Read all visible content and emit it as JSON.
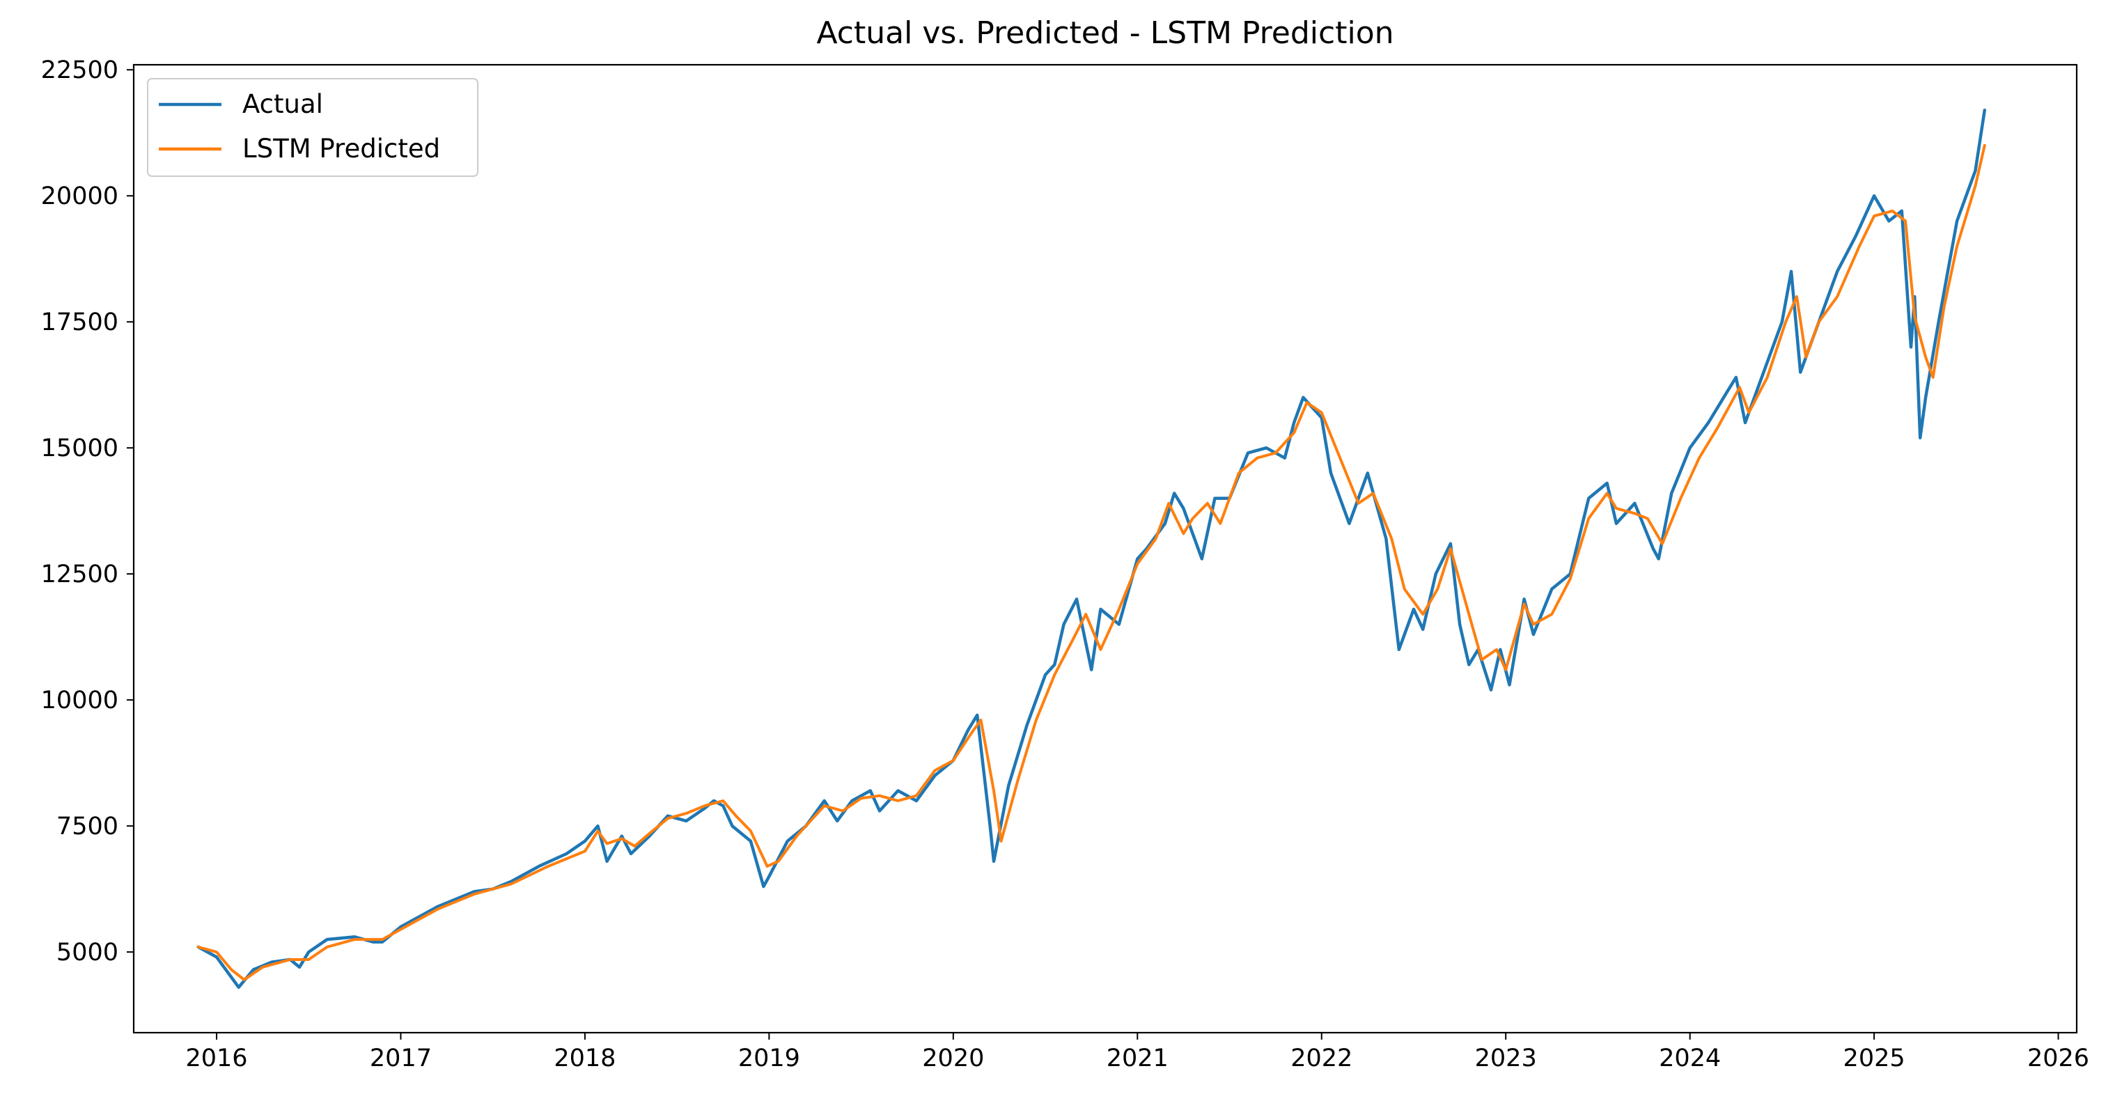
{
  "chart_data": {
    "type": "line",
    "title": "Actual vs. Predicted - LSTM Prediction",
    "xlabel": "",
    "ylabel": "",
    "xlim": [
      2015.55,
      2026.1
    ],
    "ylim": [
      3400,
      22600
    ],
    "x_ticks": [
      "2016",
      "2017",
      "2018",
      "2019",
      "2020",
      "2021",
      "2022",
      "2023",
      "2024",
      "2025",
      "2026"
    ],
    "y_ticks": [
      "5000",
      "7500",
      "10000",
      "12500",
      "15000",
      "17500",
      "20000",
      "22500"
    ],
    "legend_position": "top-left",
    "grid": false,
    "series": [
      {
        "name": "Actual",
        "color": "#1f77b4",
        "x": [
          2015.9,
          2016.0,
          2016.08,
          2016.12,
          2016.2,
          2016.3,
          2016.4,
          2016.45,
          2016.5,
          2016.6,
          2016.75,
          2016.85,
          2016.9,
          2017.0,
          2017.2,
          2017.4,
          2017.5,
          2017.6,
          2017.75,
          2017.9,
          2018.0,
          2018.07,
          2018.12,
          2018.2,
          2018.25,
          2018.35,
          2018.45,
          2018.55,
          2018.65,
          2018.7,
          2018.75,
          2018.8,
          2018.9,
          2018.97,
          2019.0,
          2019.1,
          2019.2,
          2019.3,
          2019.37,
          2019.45,
          2019.55,
          2019.6,
          2019.7,
          2019.8,
          2019.9,
          2020.0,
          2020.08,
          2020.13,
          2020.2,
          2020.22,
          2020.3,
          2020.4,
          2020.5,
          2020.55,
          2020.6,
          2020.67,
          2020.75,
          2020.8,
          2020.9,
          2021.0,
          2021.05,
          2021.15,
          2021.2,
          2021.25,
          2021.35,
          2021.42,
          2021.5,
          2021.6,
          2021.7,
          2021.8,
          2021.85,
          2021.9,
          2022.0,
          2022.05,
          2022.15,
          2022.25,
          2022.35,
          2022.42,
          2022.5,
          2022.55,
          2022.62,
          2022.7,
          2022.75,
          2022.8,
          2022.85,
          2022.92,
          2022.97,
          2023.02,
          2023.1,
          2023.15,
          2023.25,
          2023.35,
          2023.45,
          2023.55,
          2023.6,
          2023.7,
          2023.8,
          2023.83,
          2023.9,
          2024.0,
          2024.1,
          2024.2,
          2024.25,
          2024.3,
          2024.4,
          2024.5,
          2024.55,
          2024.6,
          2024.65,
          2024.7,
          2024.8,
          2024.9,
          2025.0,
          2025.08,
          2025.15,
          2025.2,
          2025.22,
          2025.25,
          2025.28,
          2025.35,
          2025.45,
          2025.55,
          2025.6
        ],
        "y": [
          5100,
          4900,
          4500,
          4300,
          4650,
          4800,
          4850,
          4700,
          5000,
          5250,
          5300,
          5200,
          5200,
          5500,
          5900,
          6200,
          6250,
          6400,
          6700,
          6950,
          7200,
          7500,
          6800,
          7300,
          6950,
          7300,
          7700,
          7600,
          7850,
          8000,
          7900,
          7500,
          7200,
          6300,
          6500,
          7200,
          7500,
          8000,
          7600,
          8000,
          8200,
          7800,
          8200,
          8000,
          8500,
          8800,
          9400,
          9700,
          7500,
          6800,
          8300,
          9500,
          10500,
          10700,
          11500,
          12000,
          10600,
          11800,
          11500,
          12800,
          13000,
          13500,
          14100,
          13800,
          12800,
          14000,
          14000,
          14900,
          15000,
          14800,
          15500,
          16000,
          15600,
          14500,
          13500,
          14500,
          13200,
          11000,
          11800,
          11400,
          12500,
          13100,
          11500,
          10700,
          11000,
          10200,
          11000,
          10300,
          12000,
          11300,
          12200,
          12500,
          14000,
          14300,
          13500,
          13900,
          13000,
          12800,
          14100,
          15000,
          15500,
          16100,
          16400,
          15500,
          16500,
          17500,
          18500,
          16500,
          17000,
          17500,
          18500,
          19200,
          20000,
          19500,
          19700,
          17000,
          18000,
          15200,
          16000,
          17500,
          19500,
          20500,
          21700
        ]
      },
      {
        "name": "LSTM Predicted",
        "color": "#ff7f0e",
        "x": [
          2015.9,
          2016.0,
          2016.08,
          2016.15,
          2016.25,
          2016.4,
          2016.5,
          2016.6,
          2016.75,
          2016.9,
          2017.0,
          2017.2,
          2017.4,
          2017.6,
          2017.8,
          2018.0,
          2018.07,
          2018.12,
          2018.2,
          2018.27,
          2018.35,
          2018.45,
          2018.55,
          2018.65,
          2018.75,
          2018.82,
          2018.9,
          2018.99,
          2019.05,
          2019.15,
          2019.3,
          2019.4,
          2019.5,
          2019.6,
          2019.7,
          2019.8,
          2019.9,
          2020.0,
          2020.1,
          2020.15,
          2020.22,
          2020.26,
          2020.35,
          2020.45,
          2020.55,
          2020.65,
          2020.72,
          2020.8,
          2020.9,
          2021.0,
          2021.1,
          2021.17,
          2021.25,
          2021.3,
          2021.38,
          2021.45,
          2021.55,
          2021.65,
          2021.75,
          2021.85,
          2021.92,
          2022.0,
          2022.1,
          2022.2,
          2022.28,
          2022.38,
          2022.45,
          2022.55,
          2022.63,
          2022.7,
          2022.8,
          2022.87,
          2022.95,
          2023.0,
          2023.1,
          2023.15,
          2023.25,
          2023.35,
          2023.45,
          2023.55,
          2023.6,
          2023.7,
          2023.77,
          2023.85,
          2023.95,
          2024.05,
          2024.15,
          2024.27,
          2024.32,
          2024.42,
          2024.52,
          2024.58,
          2024.63,
          2024.7,
          2024.8,
          2024.92,
          2025.0,
          2025.1,
          2025.17,
          2025.22,
          2025.28,
          2025.32,
          2025.38,
          2025.45,
          2025.55,
          2025.6
        ],
        "y": [
          5100,
          5000,
          4650,
          4450,
          4700,
          4850,
          4850,
          5100,
          5250,
          5250,
          5450,
          5850,
          6150,
          6350,
          6700,
          7000,
          7400,
          7150,
          7250,
          7100,
          7350,
          7650,
          7750,
          7900,
          8000,
          7700,
          7400,
          6700,
          6800,
          7300,
          7900,
          7800,
          8050,
          8100,
          8000,
          8100,
          8600,
          8800,
          9350,
          9600,
          8200,
          7200,
          8400,
          9600,
          10500,
          11200,
          11700,
          11000,
          11800,
          12700,
          13200,
          13900,
          13300,
          13600,
          13900,
          13500,
          14500,
          14800,
          14900,
          15300,
          15900,
          15700,
          14800,
          13900,
          14100,
          13200,
          12200,
          11700,
          12200,
          13000,
          11700,
          10800,
          11000,
          10600,
          11900,
          11500,
          11700,
          12400,
          13600,
          14100,
          13800,
          13700,
          13600,
          13100,
          14000,
          14800,
          15400,
          16200,
          15700,
          16400,
          17500,
          18000,
          16800,
          17500,
          18000,
          19000,
          19600,
          19700,
          19500,
          17600,
          16800,
          16400,
          17800,
          19000,
          20200,
          21000
        ]
      }
    ]
  }
}
